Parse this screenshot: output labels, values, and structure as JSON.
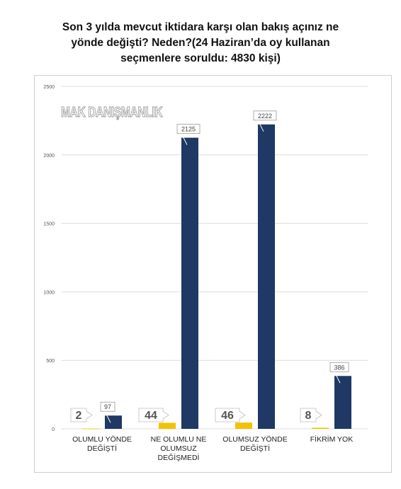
{
  "title_lines": [
    "Son 3 yılda mevcut iktidara karşı olan bakış açınız ne",
    "yönde değişti?  Neden?(24 Haziran’da oy kullanan",
    "seçmenlere soruldu: 4830 kişi)"
  ],
  "watermark": "MAK DANIŞMANLIK",
  "chart_data": {
    "type": "bar",
    "categories": [
      [
        "OLUMLU YÖNDE",
        "DEĞİŞTİ"
      ],
      [
        "NE OLUMLU NE",
        "OLUMSUZ",
        "DEĞİŞMEDİ"
      ],
      [
        "OLUMSUZ YÖNDE",
        "DEĞİŞTİ"
      ],
      [
        "FİKRİM YOK"
      ]
    ],
    "series": [
      {
        "values": [
          2,
          44,
          46,
          8
        ],
        "color": "#f2c200",
        "label_style": "bold-callout"
      },
      {
        "values": [
          97,
          2125,
          2222,
          386
        ],
        "color": "#1f3864",
        "label_style": "small-callout"
      }
    ],
    "ylim": [
      0,
      2500
    ],
    "yticks": [
      0,
      500,
      1000,
      1500,
      2000,
      2500
    ],
    "grid": true,
    "legend": "none"
  }
}
